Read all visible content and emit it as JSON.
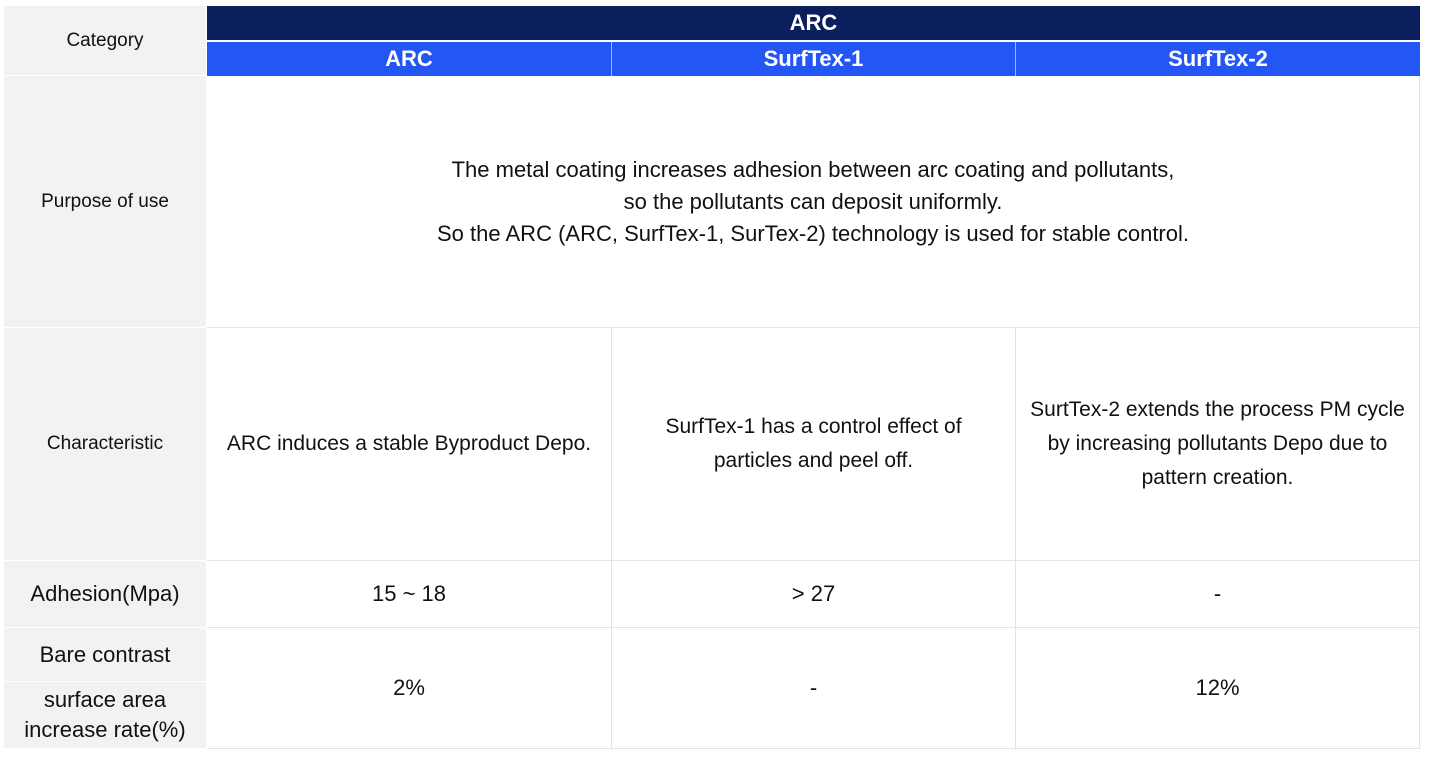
{
  "header": {
    "category_label": "Category",
    "group_label": "ARC",
    "columns": [
      "ARC",
      "SurfTex-1",
      "SurfTex-2"
    ]
  },
  "purpose": {
    "label": "Purpose of use",
    "lines": [
      "The metal coating increases adhesion between arc coating and pollutants,",
      "so the pollutants can deposit uniformly.",
      "So the ARC (ARC, SurfTex-1, SurTex-2) technology is used for stable control."
    ]
  },
  "characteristic": {
    "label": "Characteristic",
    "values": [
      "ARC induces a stable Byproduct Depo.",
      "SurfTex-1 has a control effect of particles and peel off.",
      "SurtTex-2 extends the process PM cycle by increasing pollutants Depo due to pattern creation."
    ]
  },
  "adhesion": {
    "label": "Adhesion(Mpa)",
    "values": [
      "15 ~ 18",
      "> 27",
      "-"
    ]
  },
  "surface": {
    "label_top": "Bare contrast",
    "label_bottom": "surface area increase rate(%)",
    "values": [
      "2%",
      "-",
      "12%"
    ]
  }
}
